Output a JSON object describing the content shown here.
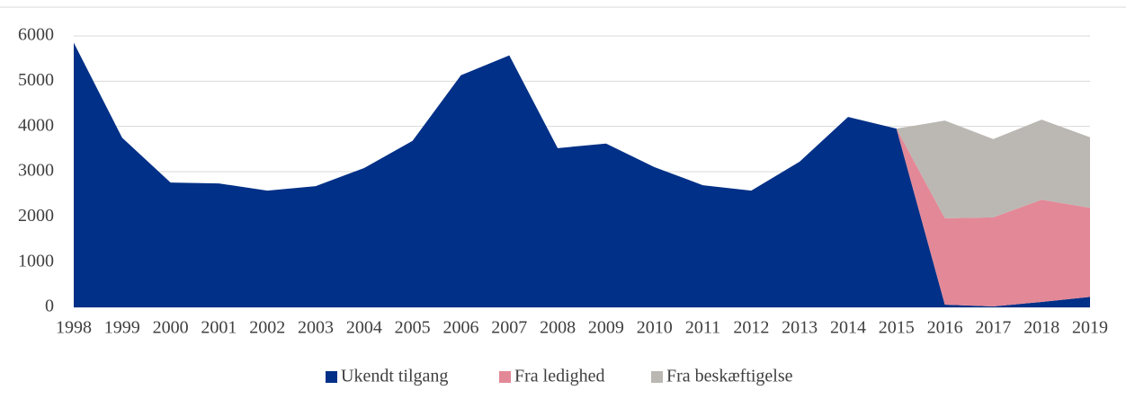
{
  "chart_data": {
    "type": "stacked_area",
    "categories": [
      "1998",
      "1999",
      "2000",
      "2001",
      "2002",
      "2003",
      "2004",
      "2005",
      "2006",
      "2007",
      "2008",
      "2009",
      "2010",
      "2011",
      "2012",
      "2013",
      "2014",
      "2015",
      "2016",
      "2017",
      "2018",
      "2019"
    ],
    "series": [
      {
        "name": "Ukendt tilgang",
        "color": "#003087",
        "values": [
          5850,
          3750,
          2760,
          2740,
          2580,
          2680,
          3080,
          3680,
          5130,
          5570,
          3520,
          3620,
          3100,
          2700,
          2580,
          3220,
          4210,
          3950,
          60,
          20,
          120,
          230
        ]
      },
      {
        "name": "Fra ledighed",
        "color": "#e38897",
        "values": [
          null,
          null,
          null,
          null,
          null,
          null,
          null,
          null,
          null,
          null,
          null,
          null,
          null,
          null,
          null,
          null,
          null,
          0,
          1910,
          1970,
          2260,
          1970
        ]
      },
      {
        "name": "Fra beskæftigelse",
        "color": "#bbb8b3",
        "values": [
          null,
          null,
          null,
          null,
          null,
          null,
          null,
          null,
          null,
          null,
          null,
          null,
          null,
          null,
          null,
          null,
          null,
          0,
          2160,
          1730,
          1770,
          1560
        ]
      }
    ],
    "ylim": [
      0,
      6000
    ],
    "yticks": [
      0,
      1000,
      2000,
      3000,
      4000,
      5000,
      6000
    ],
    "grid": true,
    "legend": "bottom"
  }
}
